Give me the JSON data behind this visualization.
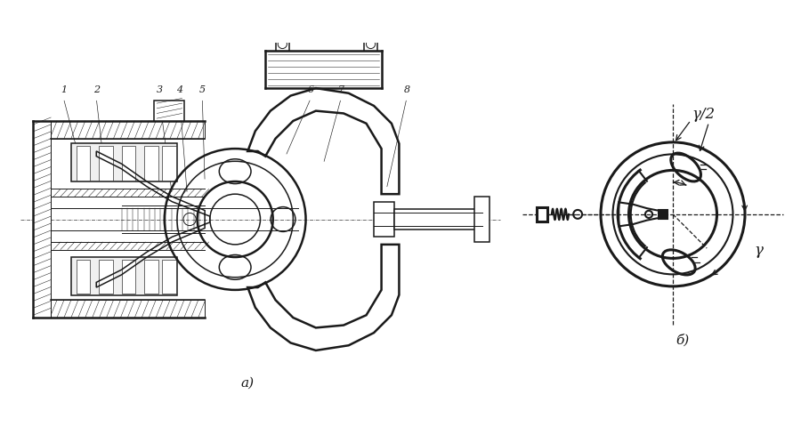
{
  "bg_color": "#ffffff",
  "col": "#1a1a1a",
  "label_a": "а)",
  "label_b": "б)",
  "gamma_half": "γ/2",
  "gamma": "γ",
  "lw_k": 1.8,
  "lw_m": 1.1,
  "lw_t": 0.7,
  "lw_v": 0.45,
  "hatch_lw": 0.4
}
